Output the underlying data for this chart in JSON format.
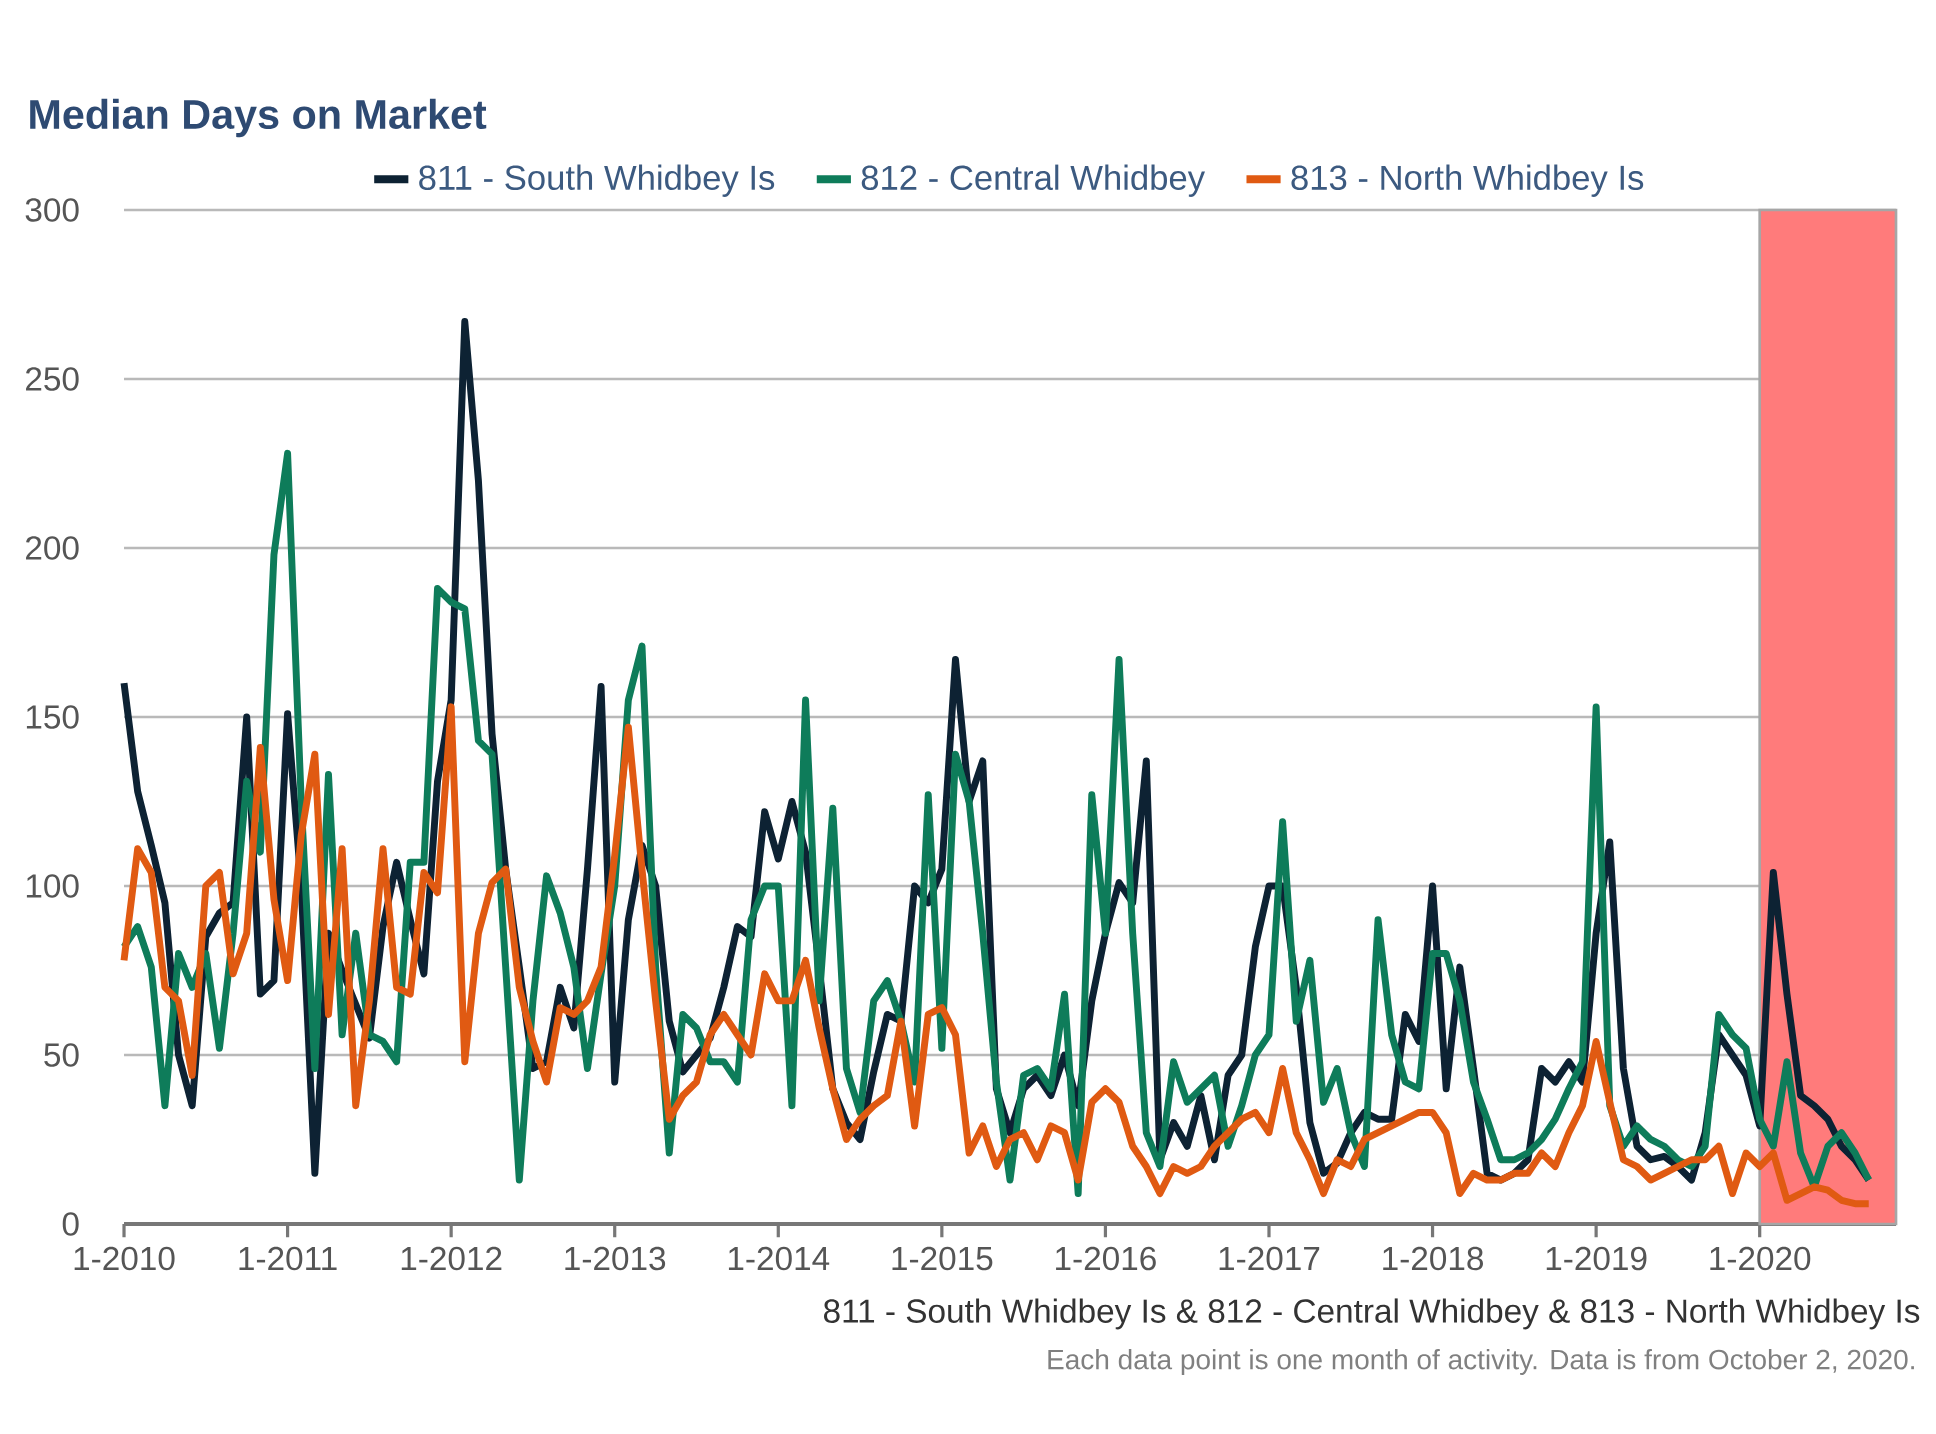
{
  "chart_data": {
    "type": "line",
    "title": "Median Days on Market",
    "annotations": [
      "811 - South Whidbey Is & 812 - Central Whidbey & 813 - North Whidbey Is",
      "Each data point is one month of activity. Data is from October 2, 2020."
    ],
    "x": [
      "2010-01",
      "2010-02",
      "2010-03",
      "2010-04",
      "2010-05",
      "2010-06",
      "2010-07",
      "2010-08",
      "2010-09",
      "2010-10",
      "2010-11",
      "2010-12",
      "2011-01",
      "2011-02",
      "2011-03",
      "2011-04",
      "2011-05",
      "2011-06",
      "2011-07",
      "2011-08",
      "2011-09",
      "2011-10",
      "2011-11",
      "2011-12",
      "2012-01",
      "2012-02",
      "2012-03",
      "2012-04",
      "2012-05",
      "2012-06",
      "2012-07",
      "2012-08",
      "2012-09",
      "2012-10",
      "2012-11",
      "2012-12",
      "2013-01",
      "2013-02",
      "2013-03",
      "2013-04",
      "2013-05",
      "2013-06",
      "2013-07",
      "2013-08",
      "2013-09",
      "2013-10",
      "2013-11",
      "2013-12",
      "2014-01",
      "2014-02",
      "2014-03",
      "2014-04",
      "2014-05",
      "2014-06",
      "2014-07",
      "2014-08",
      "2014-09",
      "2014-10",
      "2014-11",
      "2014-12",
      "2015-01",
      "2015-02",
      "2015-03",
      "2015-04",
      "2015-05",
      "2015-06",
      "2015-07",
      "2015-08",
      "2015-09",
      "2015-10",
      "2015-11",
      "2015-12",
      "2016-01",
      "2016-02",
      "2016-03",
      "2016-04",
      "2016-05",
      "2016-06",
      "2016-07",
      "2016-08",
      "2016-09",
      "2016-10",
      "2016-11",
      "2016-12",
      "2017-01",
      "2017-02",
      "2017-03",
      "2017-04",
      "2017-05",
      "2017-06",
      "2017-07",
      "2017-08",
      "2017-09",
      "2017-10",
      "2017-11",
      "2017-12",
      "2018-01",
      "2018-02",
      "2018-03",
      "2018-04",
      "2018-05",
      "2018-06",
      "2018-07",
      "2018-08",
      "2018-09",
      "2018-10",
      "2018-11",
      "2018-12",
      "2019-01",
      "2019-02",
      "2019-03",
      "2019-04",
      "2019-05",
      "2019-06",
      "2019-07",
      "2019-08",
      "2019-09",
      "2019-10",
      "2019-11",
      "2019-12",
      "2020-01",
      "2020-02",
      "2020-03",
      "2020-04",
      "2020-05",
      "2020-06",
      "2020-07",
      "2020-08",
      "2020-09"
    ],
    "series": [
      {
        "name": "811 - South Whidbey Is",
        "color": "#0d2233",
        "values": [
          160,
          128,
          112,
          95,
          50,
          35,
          85,
          92,
          95,
          150,
          68,
          72,
          151,
          100,
          15,
          86,
          75,
          65,
          55,
          88,
          107,
          90,
          74,
          131,
          155,
          267,
          220,
          145,
          105,
          76,
          46,
          48,
          70,
          58,
          105,
          159,
          42,
          90,
          112,
          100,
          60,
          45,
          50,
          55,
          70,
          88,
          85,
          122,
          108,
          125,
          110,
          76,
          40,
          30,
          25,
          45,
          62,
          60,
          100,
          95,
          105,
          167,
          125,
          137,
          40,
          27,
          40,
          44,
          38,
          50,
          35,
          66,
          86,
          101,
          95,
          137,
          19,
          30,
          23,
          38,
          19,
          44,
          50,
          82,
          100,
          100,
          70,
          30,
          15,
          18,
          27,
          33,
          31,
          31,
          62,
          54,
          100,
          40,
          76,
          46,
          15,
          13,
          15,
          19,
          46,
          42,
          48,
          42,
          86,
          113,
          46,
          23,
          19,
          20,
          17,
          13,
          27,
          56,
          50,
          44,
          29,
          104,
          68,
          38,
          35,
          31,
          23,
          19,
          13
        ]
      },
      {
        "name": "812 - Central Whidbey",
        "color": "#0e7c5a",
        "values": [
          82,
          88,
          76,
          35,
          80,
          70,
          80,
          52,
          86,
          131,
          110,
          198,
          228,
          125,
          46,
          133,
          56,
          86,
          56,
          54,
          48,
          107,
          107,
          188,
          184,
          182,
          143,
          139,
          76,
          13,
          66,
          103,
          92,
          76,
          46,
          74,
          100,
          155,
          171,
          76,
          21,
          62,
          58,
          48,
          48,
          42,
          90,
          100,
          100,
          35,
          155,
          66,
          123,
          46,
          33,
          66,
          72,
          60,
          42,
          127,
          52,
          139,
          125,
          86,
          42,
          13,
          44,
          46,
          40,
          68,
          9,
          127,
          86,
          167,
          86,
          27,
          17,
          48,
          36,
          40,
          44,
          23,
          35,
          50,
          56,
          119,
          60,
          78,
          36,
          46,
          27,
          17,
          90,
          56,
          42,
          40,
          80,
          80,
          66,
          42,
          31,
          19,
          19,
          21,
          25,
          31,
          40,
          48,
          153,
          35,
          23,
          29,
          25,
          23,
          19,
          17,
          23,
          62,
          56,
          52,
          31,
          23,
          48,
          21,
          11,
          23,
          27,
          21,
          13
        ]
      },
      {
        "name": "813 - North Whidbey Is",
        "color": "#e05a12",
        "values": [
          78,
          111,
          104,
          70,
          66,
          44,
          100,
          104,
          74,
          86,
          141,
          96,
          72,
          115,
          139,
          62,
          111,
          35,
          66,
          111,
          70,
          68,
          104,
          98,
          153,
          48,
          86,
          101,
          105,
          70,
          54,
          42,
          64,
          62,
          66,
          76,
          109,
          147,
          105,
          66,
          31,
          38,
          42,
          56,
          62,
          56,
          50,
          74,
          66,
          66,
          78,
          58,
          40,
          25,
          31,
          35,
          38,
          60,
          29,
          62,
          64,
          56,
          21,
          29,
          17,
          25,
          27,
          19,
          29,
          27,
          13,
          36,
          40,
          36,
          23,
          17,
          9,
          17,
          15,
          17,
          23,
          27,
          31,
          33,
          27,
          46,
          27,
          19,
          9,
          19,
          17,
          25,
          27,
          29,
          31,
          33,
          33,
          27,
          9,
          15,
          13,
          13,
          15,
          15,
          21,
          17,
          27,
          35,
          54,
          36,
          19,
          17,
          13,
          15,
          17,
          19,
          19,
          23,
          9,
          21,
          17,
          21,
          7,
          9,
          11,
          10,
          7,
          6,
          6
        ]
      }
    ],
    "xlim": [
      "2010-01",
      "2020-11"
    ],
    "xticks": [
      {
        "value": "2010-01",
        "label": "1-2010"
      },
      {
        "value": "2011-01",
        "label": "1-2011"
      },
      {
        "value": "2012-01",
        "label": "1-2012"
      },
      {
        "value": "2013-01",
        "label": "1-2013"
      },
      {
        "value": "2014-01",
        "label": "1-2014"
      },
      {
        "value": "2015-01",
        "label": "1-2015"
      },
      {
        "value": "2016-01",
        "label": "1-2016"
      },
      {
        "value": "2017-01",
        "label": "1-2017"
      },
      {
        "value": "2018-01",
        "label": "1-2018"
      },
      {
        "value": "2019-01",
        "label": "1-2019"
      },
      {
        "value": "2020-01",
        "label": "1-2020"
      }
    ],
    "ylim": [
      0,
      300
    ],
    "yticks": [
      0,
      50,
      100,
      150,
      200,
      250,
      300
    ],
    "bands": [
      {
        "axis": "x",
        "from": "2020-01",
        "to": "2020-11",
        "color": "#ff7b7b"
      }
    ],
    "grid": "y",
    "legend": "top",
    "marker": "none",
    "line_style": "solid"
  }
}
